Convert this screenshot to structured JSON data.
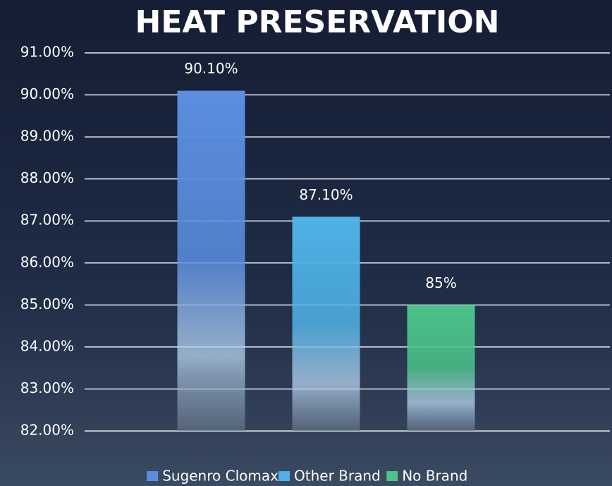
{
  "chart_data": {
    "type": "bar",
    "title": "HEAT PRESERVATION",
    "categories": [
      null
    ],
    "series": [
      {
        "name": "Sugenro Clomax",
        "color": "#5b8ee0",
        "values": [
          90.1
        ],
        "value_labels": [
          "90.10%"
        ]
      },
      {
        "name": "Other Brand",
        "color": "#4fb2e6",
        "values": [
          87.1
        ],
        "value_labels": [
          "87.10%"
        ]
      },
      {
        "name": "No Brand",
        "color": "#4cc38a",
        "values": [
          85
        ],
        "value_labels": [
          "85%"
        ]
      }
    ],
    "ylim": [
      82,
      91
    ],
    "yticks": [
      {
        "value": 82,
        "label": "82.00%"
      },
      {
        "value": 83,
        "label": "83.00%"
      },
      {
        "value": 84,
        "label": "84.00%"
      },
      {
        "value": 85,
        "label": "85.00%"
      },
      {
        "value": 86,
        "label": "86.00%"
      },
      {
        "value": 87,
        "label": "87.00%"
      },
      {
        "value": 88,
        "label": "88.00%"
      },
      {
        "value": 89,
        "label": "89.00%"
      },
      {
        "value": 90,
        "label": "90.00%"
      },
      {
        "value": 91,
        "label": "91.00%"
      }
    ],
    "grid": true,
    "legend": "bottom"
  }
}
